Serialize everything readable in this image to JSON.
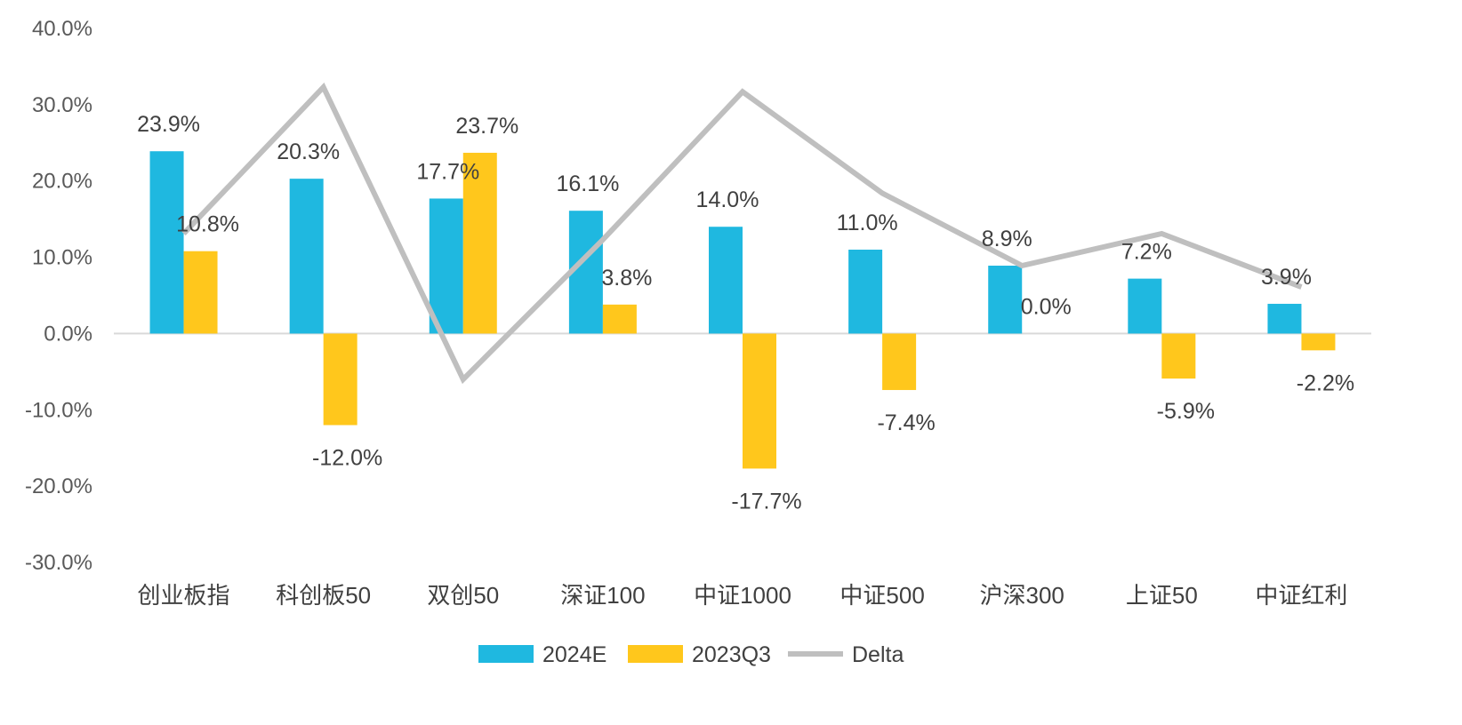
{
  "chart_data": {
    "type": "bar",
    "categories": [
      "创业板指",
      "科创板50",
      "双创50",
      "深证100",
      "中证1000",
      "中证500",
      "沪深300",
      "上证50",
      "中证红利"
    ],
    "series": [
      {
        "name": "2024E",
        "type": "bar",
        "color": "#1FB8E0",
        "values": [
          23.9,
          20.3,
          17.7,
          16.1,
          14.0,
          11.0,
          8.9,
          7.2,
          3.9
        ],
        "labels": [
          "23.9%",
          "20.3%",
          "17.7%",
          "16.1%",
          "14.0%",
          "11.0%",
          "8.9%",
          "7.2%",
          "3.9%"
        ]
      },
      {
        "name": "2023Q3",
        "type": "bar",
        "color": "#FFC71C",
        "values": [
          10.8,
          -12.0,
          23.7,
          3.8,
          -17.7,
          -7.4,
          0.0,
          -5.9,
          -2.2
        ],
        "labels": [
          "10.8%",
          "-12.0%",
          "23.7%",
          "3.8%",
          "-17.7%",
          "-7.4%",
          "0.0%",
          "-5.9%",
          "-2.2%"
        ]
      },
      {
        "name": "Delta",
        "type": "line",
        "color": "#BFBFBF",
        "values": [
          13.1,
          32.3,
          -6.0,
          12.3,
          31.7,
          18.4,
          8.9,
          13.1,
          6.1
        ]
      }
    ],
    "yticks": [
      "-30.0%",
      "-20.0%",
      "-10.0%",
      "0.0%",
      "10.0%",
      "20.0%",
      "30.0%",
      "40.0%"
    ],
    "ylim": [
      -30,
      40
    ],
    "grid": false,
    "legend_position": "bottom"
  }
}
